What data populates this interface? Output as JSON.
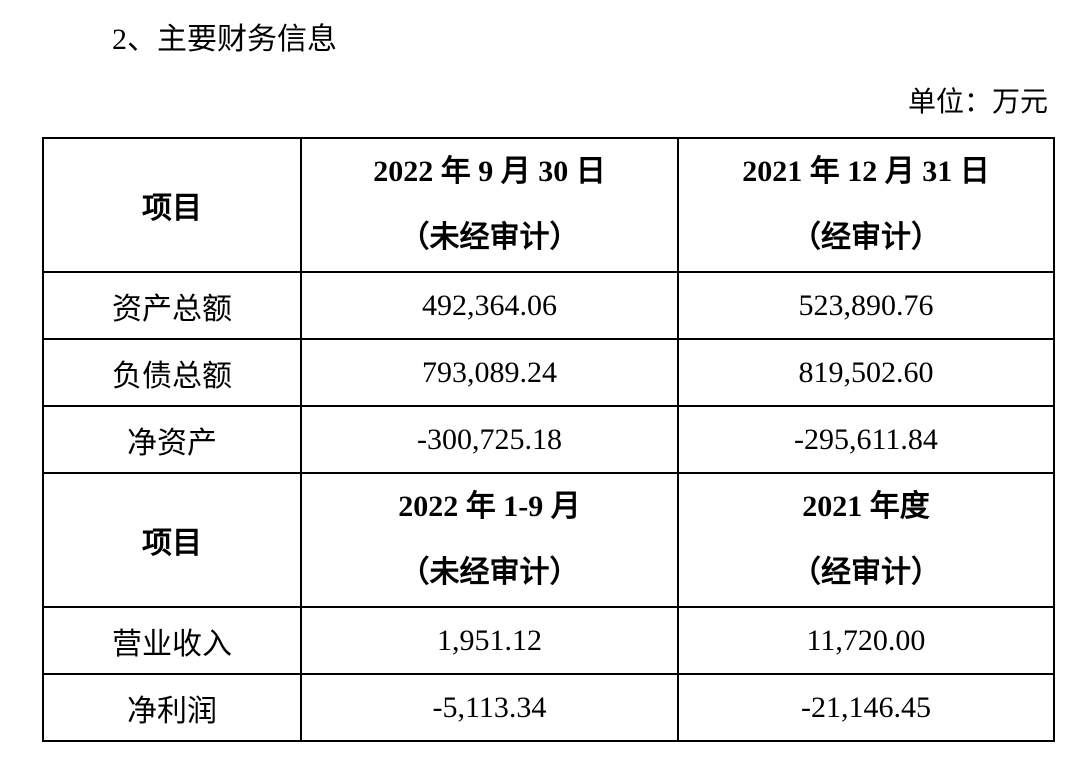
{
  "heading": "2、主要财务信息",
  "unit": "单位：万元",
  "table": {
    "sections": [
      {
        "header": {
          "item": "项目",
          "columns": [
            {
              "period": "2022 年 9 月 30 日",
              "audit": "（未经审计）"
            },
            {
              "period": "2021 年 12 月 31 日",
              "audit": "（经审计）"
            }
          ]
        },
        "rows": [
          {
            "label": "资产总额",
            "values": [
              "492,364.06",
              "523,890.76"
            ]
          },
          {
            "label": "负债总额",
            "values": [
              "793,089.24",
              "819,502.60"
            ]
          },
          {
            "label": "净资产",
            "values": [
              "-300,725.18",
              "-295,611.84"
            ]
          }
        ]
      },
      {
        "header": {
          "item": "项目",
          "columns": [
            {
              "period": "2022 年 1-9 月",
              "audit": "（未经审计）"
            },
            {
              "period": "2021 年度",
              "audit": "（经审计）"
            }
          ]
        },
        "rows": [
          {
            "label": "营业收入",
            "values": [
              "1,951.12",
              "11,720.00"
            ]
          },
          {
            "label": "净利润",
            "values": [
              "-5,113.34",
              "-21,146.45"
            ]
          }
        ]
      }
    ]
  }
}
